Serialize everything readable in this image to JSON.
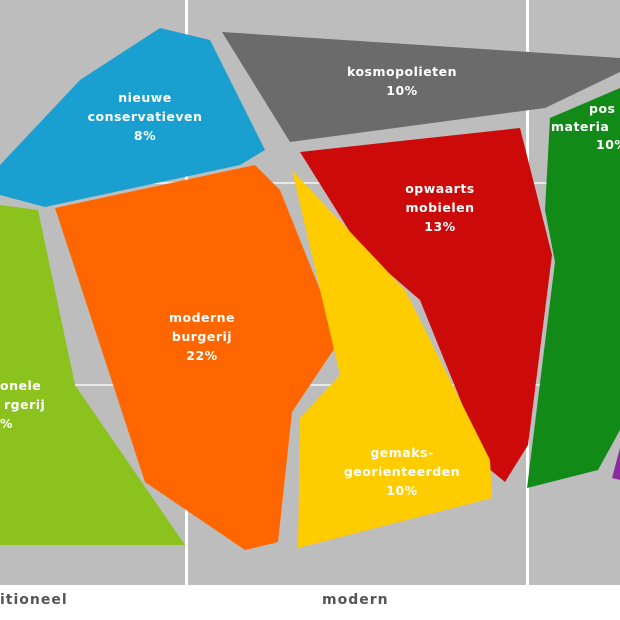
{
  "colors": {
    "background_band": "#bdbdbd",
    "gap": "#dcdcdc",
    "white": "#ffffff"
  },
  "segments": {
    "nieuwe_conservatieven": {
      "line1": "nieuwe",
      "line2": "conservatieven",
      "pct": "8%",
      "color": "#1aa0d0"
    },
    "kosmopolieten": {
      "line1": "kosmopolieten",
      "pct": "10%",
      "color": "#6b6b6b"
    },
    "post_materialisten": {
      "line1": "pos",
      "line2": "materia",
      "pct": "10%",
      "color": "#118a17"
    },
    "opwaarts_mobielen": {
      "line1": "opwaarts",
      "line2": "mobielen",
      "pct": "13%",
      "color": "#cc0a0a"
    },
    "moderne_burgerij": {
      "line1": "moderne",
      "line2": "burgerij",
      "pct": "22%",
      "color": "#ff6600"
    },
    "traditionele_burgerij": {
      "line1": "onele",
      "line2": "rgerij",
      "pct": "%",
      "color": "#8cc21e"
    },
    "gemaksgeorienteerden": {
      "line1": "gemaks-",
      "line2": "georienteerden",
      "pct": "10%",
      "color": "#ffcc00"
    },
    "purple_edge": {
      "color": "#8a2ca0"
    }
  },
  "axis": {
    "left_label": "itioneel",
    "center_label": "modern"
  }
}
